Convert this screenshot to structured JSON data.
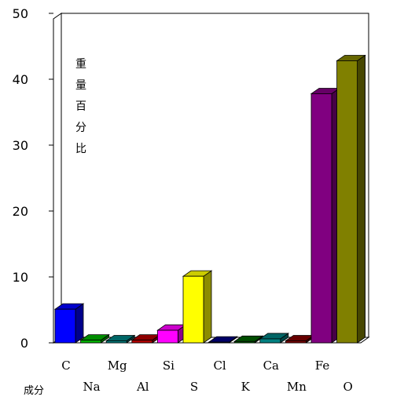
{
  "chart_data": {
    "type": "bar",
    "title": "",
    "ylabel": "重量百分比",
    "xlabel": "成分",
    "ylim": [
      0,
      50
    ],
    "yticks": [
      0,
      10,
      20,
      30,
      40,
      50
    ],
    "grid": false,
    "legend": "none",
    "categories": [
      "C",
      "Na",
      "Mg",
      "Al",
      "Si",
      "S",
      "Cl",
      "K",
      "Ca",
      "Mn",
      "Fe",
      "O"
    ],
    "values": [
      5.1,
      0.4,
      0.3,
      0.4,
      1.9,
      10.1,
      0.1,
      0.2,
      0.6,
      0.3,
      37.8,
      42.8
    ],
    "colors": [
      "#0000ff",
      "#00b000",
      "#008080",
      "#b00000",
      "#ff00ff",
      "#ffff00",
      "#000080",
      "#006000",
      "#008080",
      "#800000",
      "#800080",
      "#808000"
    ]
  }
}
